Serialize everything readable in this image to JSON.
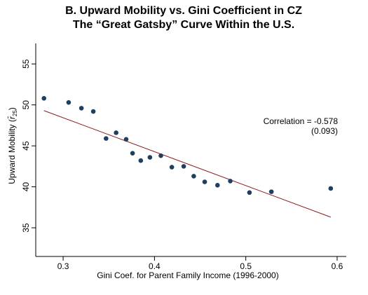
{
  "chart_data": {
    "type": "scatter",
    "title_line1": "B. Upward Mobility vs. Gini Coefficient in CZ",
    "title_line2": "The “Great Gatsby” Curve Within the U.S.",
    "xlabel": "Gini Coef. for Parent Family Income (1996-2000)",
    "ylabel_main": "Upward Mobility (",
    "ylabel_symbol": "r̄",
    "ylabel_sub": "25",
    "ylabel_close": ")",
    "xlim": [
      0.27,
      0.61
    ],
    "ylim": [
      31.5,
      57.5
    ],
    "xticks": [
      0.3,
      0.4,
      0.5,
      0.6
    ],
    "xtick_labels": [
      "0.3",
      "0.4",
      "0.5",
      "0.6"
    ],
    "yticks": [
      35,
      40,
      45,
      50,
      55
    ],
    "ytick_labels": [
      "35",
      "40",
      "45",
      "50",
      "55"
    ],
    "x": [
      0.279,
      0.306,
      0.32,
      0.333,
      0.347,
      0.358,
      0.369,
      0.376,
      0.385,
      0.395,
      0.407,
      0.419,
      0.432,
      0.443,
      0.455,
      0.469,
      0.483,
      0.504,
      0.528,
      0.593
    ],
    "y": [
      50.8,
      50.3,
      49.6,
      49.2,
      45.9,
      46.6,
      45.8,
      44.1,
      43.2,
      43.6,
      43.8,
      42.4,
      42.5,
      41.3,
      40.6,
      40.2,
      40.7,
      39.3,
      39.4,
      39.8
    ],
    "fit_line": {
      "x": [
        0.279,
        0.593
      ],
      "y": [
        49.3,
        36.3
      ]
    },
    "annotation": {
      "line1": "Correlation = -0.578",
      "line2": "(0.093)"
    },
    "colors": {
      "marker": "#1f3f5f",
      "fit_line": "#8b1a1a",
      "axis": "#000000"
    }
  }
}
